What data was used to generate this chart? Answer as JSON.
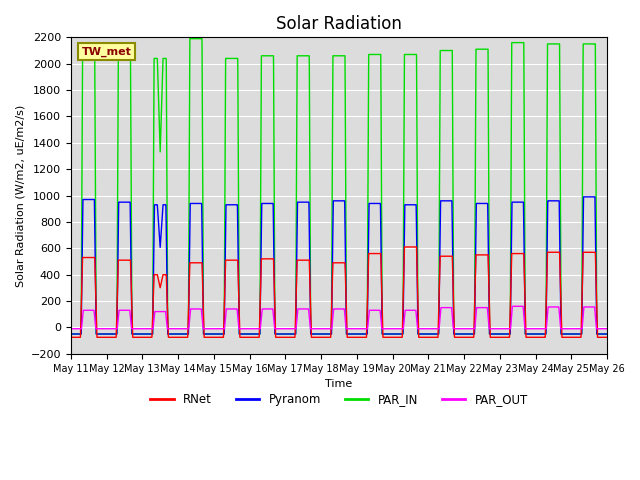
{
  "title": "Solar Radiation",
  "ylabel": "Solar Radiation (W/m2, uE/m2/s)",
  "xlabel": "Time",
  "ylim": [
    -200,
    2200
  ],
  "yticks": [
    -200,
    0,
    200,
    400,
    600,
    800,
    1000,
    1200,
    1400,
    1600,
    1800,
    2000,
    2200
  ],
  "station_label": "TW_met",
  "station_label_color": "#8B0000",
  "station_box_facecolor": "#FFFFA0",
  "station_box_edgecolor": "#8B8B00",
  "colors": {
    "RNet": "#FF0000",
    "Pyranom": "#0000FF",
    "PAR_IN": "#00DD00",
    "PAR_OUT": "#FF00FF"
  },
  "line_width": 1.0,
  "n_days": 15,
  "start_day": 11,
  "background_color": "#DCDCDC",
  "grid_color": "#FFFFFF",
  "fig_facecolor": "#FFFFFF",
  "par_in_peaks": [
    2060,
    2060,
    2040,
    2190,
    2040,
    2060,
    2060,
    2060,
    2070,
    2070,
    2100,
    2110,
    2160,
    2150,
    2150
  ],
  "pyranom_peaks": [
    970,
    950,
    930,
    940,
    930,
    940,
    950,
    960,
    940,
    930,
    960,
    940,
    950,
    960,
    990
  ],
  "rnet_peaks": [
    530,
    510,
    400,
    490,
    510,
    520,
    510,
    490,
    560,
    610,
    540,
    550,
    560,
    570,
    570
  ],
  "par_out_peaks": [
    130,
    130,
    120,
    140,
    140,
    140,
    140,
    140,
    130,
    130,
    150,
    150,
    160,
    155,
    155
  ],
  "night_par_in": -50,
  "night_pyranom": -50,
  "night_rnet": -75,
  "night_par_out": -10
}
